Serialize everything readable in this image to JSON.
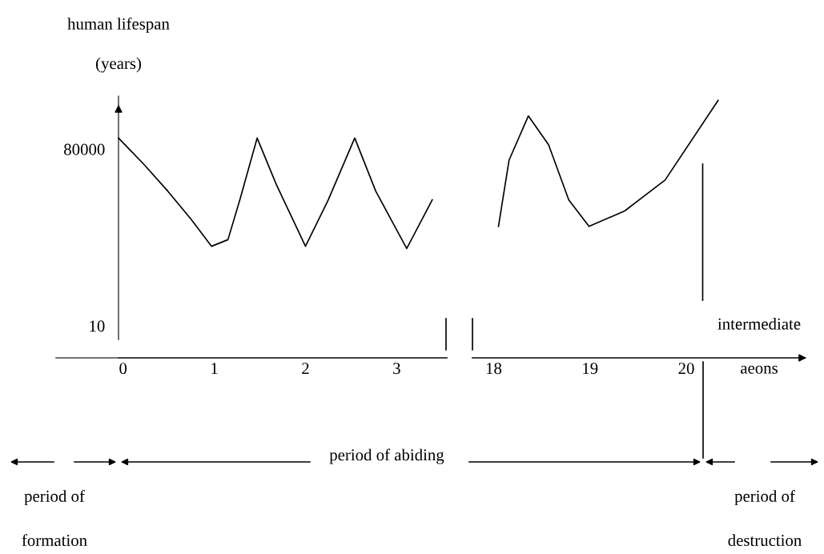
{
  "chart_data": [
    {
      "type": "line",
      "ylabel": "human lifespan\n\n(years)",
      "x": [
        -0.05,
        0.23,
        0.49,
        0.75,
        0.97,
        1.15,
        1.28,
        1.47,
        1.68,
        2.0,
        2.25,
        2.54,
        2.77,
        3.11,
        3.39
      ],
      "series": [
        {
          "color": "#000000",
          "values": [
            85000,
            73000,
            61000,
            48000,
            36000,
            39000,
            57000,
            85000,
            64000,
            36000,
            57000,
            85000,
            61000,
            35000,
            57000
          ]
        }
      ],
      "xlim": [
        -0.05,
        3.55
      ],
      "xticks": [
        0,
        1,
        2,
        3
      ],
      "ylim": [
        -14500,
        104000
      ],
      "yticks": [
        10,
        80000
      ],
      "grid": false,
      "legend": false,
      "marker": "none",
      "line_style": "solid",
      "annotations": [
        "period of\n\nformation",
        "period of abiding",
        "period of\n\ndestruction"
      ]
    },
    {
      "type": "line",
      "xlabel": "intermediate\n\naeons",
      "x": [
        18.05,
        18.16,
        18.36,
        18.57,
        18.78,
        18.99,
        19.36,
        19.78,
        20.33
      ],
      "series": [
        {
          "color": "#000000",
          "values": [
            45000,
            75000,
            95000,
            82000,
            57000,
            45000,
            52000,
            66000,
            102000
          ]
        }
      ],
      "xlim": [
        17.78,
        21.23
      ],
      "xticks": [
        18,
        19,
        20
      ],
      "yticks": [
        10,
        80000
      ],
      "tick_labels": "x",
      "ref_lines": [
        {
          "axis": "x",
          "value": 20.17,
          "color": "#000000",
          "line_style": "solid"
        }
      ],
      "grid": false,
      "legend": false,
      "marker": "none",
      "line_style": "solid"
    }
  ]
}
